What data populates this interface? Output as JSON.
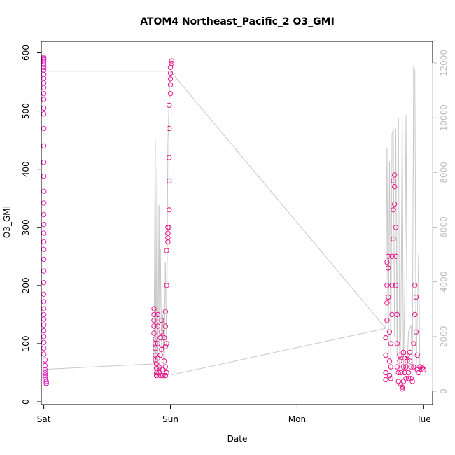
{
  "chart_data": {
    "type": "scatter",
    "title": "ATOM4 Northeast_Pacific_2 O3_GMI",
    "xlabel": "Date",
    "ylabel": "O3_GMI",
    "x_ticks": [
      {
        "label": "Sat",
        "day": 0
      },
      {
        "label": "Sun",
        "day": 1
      },
      {
        "label": "Mon",
        "day": 2
      },
      {
        "label": "Tue",
        "day": 3
      }
    ],
    "xlim": [
      -0.02,
      3.07
    ],
    "ylim": [
      0,
      600
    ],
    "y_ticks": [
      0,
      100,
      200,
      300,
      400,
      500,
      600
    ],
    "y2lim": [
      0,
      12000
    ],
    "y2_ticks": [
      0,
      2000,
      4000,
      6000,
      8000,
      10000,
      12000
    ],
    "grid": false,
    "legend": "none",
    "colors": {
      "marker": "#e6158a",
      "marker_early": "#e020c0",
      "altitude_line": "#c8c8c8",
      "axis": "#000000",
      "right_axis": "#bdbdbd"
    },
    "series": [
      {
        "points": [
          [
            0.0,
            592
          ],
          [
            0.0,
            590
          ],
          [
            0.0,
            588
          ],
          [
            0.0,
            585
          ],
          [
            0.0,
            580
          ],
          [
            0.0,
            575
          ],
          [
            0.0,
            570
          ],
          [
            0.0,
            563
          ],
          [
            0.0,
            556
          ],
          [
            0.0,
            548
          ],
          [
            0.0,
            540
          ],
          [
            0.0,
            530
          ],
          [
            0.0,
            520
          ],
          [
            0.0,
            505
          ],
          [
            0.0,
            495
          ],
          [
            0.0,
            470
          ],
          [
            0.0,
            440
          ],
          [
            0.0,
            412
          ],
          [
            0.0,
            388
          ],
          [
            0.0,
            362
          ],
          [
            0.0,
            342
          ],
          [
            0.0,
            322
          ],
          [
            0.0,
            305
          ],
          [
            0.0,
            290
          ],
          [
            0.0,
            275
          ],
          [
            0.0,
            262
          ],
          [
            0.0,
            245
          ],
          [
            0.0,
            225
          ],
          [
            0.0,
            205
          ],
          [
            0.0,
            185
          ],
          [
            0.0,
            172
          ],
          [
            0.0,
            160
          ],
          [
            0.0,
            150
          ],
          [
            0.0,
            142
          ],
          [
            0.0,
            132
          ],
          [
            0.0,
            122
          ],
          [
            0.0,
            112
          ],
          [
            0.0,
            102
          ],
          [
            0.0,
            92
          ],
          [
            0.0,
            82
          ],
          [
            0.01,
            72
          ],
          [
            0.01,
            62
          ],
          [
            0.01,
            55
          ],
          [
            0.01,
            50
          ],
          [
            0.01,
            46
          ],
          [
            0.01,
            42
          ],
          [
            0.01,
            38
          ],
          [
            0.02,
            35
          ],
          [
            0.02,
            32
          ],
          [
            0.02,
            31
          ],
          [
            0.87,
            160
          ],
          [
            0.87,
            150
          ],
          [
            0.87,
            140
          ],
          [
            0.87,
            130
          ],
          [
            0.87,
            118
          ],
          [
            0.88,
            108
          ],
          [
            0.88,
            100
          ],
          [
            0.88,
            92
          ],
          [
            0.88,
            80
          ],
          [
            0.88,
            72
          ],
          [
            0.89,
            65
          ],
          [
            0.89,
            58
          ],
          [
            0.89,
            50
          ],
          [
            0.89,
            45
          ],
          [
            0.9,
            150
          ],
          [
            0.9,
            130
          ],
          [
            0.9,
            100
          ],
          [
            0.9,
            75
          ],
          [
            0.91,
            60
          ],
          [
            0.91,
            50
          ],
          [
            0.92,
            45
          ],
          [
            0.92,
            80
          ],
          [
            0.92,
            110
          ],
          [
            0.93,
            140
          ],
          [
            0.93,
            120
          ],
          [
            0.93,
            90
          ],
          [
            0.94,
            55
          ],
          [
            0.94,
            45
          ],
          [
            0.95,
            70
          ],
          [
            0.95,
            110
          ],
          [
            0.96,
            155
          ],
          [
            0.96,
            130
          ],
          [
            0.96,
            95
          ],
          [
            0.96,
            60
          ],
          [
            0.96,
            45
          ],
          [
            0.97,
            50
          ],
          [
            0.97,
            100
          ],
          [
            0.97,
            200
          ],
          [
            0.97,
            260
          ],
          [
            0.98,
            282
          ],
          [
            0.98,
            290
          ],
          [
            0.98,
            300
          ],
          [
            0.98,
            290
          ],
          [
            0.98,
            275
          ],
          [
            0.99,
            300
          ],
          [
            0.99,
            330
          ],
          [
            0.99,
            380
          ],
          [
            0.99,
            420
          ],
          [
            0.99,
            470
          ],
          [
            0.99,
            510
          ],
          [
            1.0,
            530
          ],
          [
            1.0,
            545
          ],
          [
            1.0,
            555
          ],
          [
            1.0,
            565
          ],
          [
            1.0,
            575
          ],
          [
            1.01,
            582
          ],
          [
            1.01,
            586
          ],
          [
            2.7,
            38
          ],
          [
            2.7,
            50
          ],
          [
            2.7,
            80
          ],
          [
            2.7,
            110
          ],
          [
            2.71,
            140
          ],
          [
            2.71,
            170
          ],
          [
            2.71,
            200
          ],
          [
            2.71,
            240
          ],
          [
            2.72,
            250
          ],
          [
            2.72,
            230
          ],
          [
            2.72,
            180
          ],
          [
            2.73,
            120
          ],
          [
            2.73,
            70
          ],
          [
            2.73,
            45
          ],
          [
            2.74,
            40
          ],
          [
            2.74,
            60
          ],
          [
            2.74,
            100
          ],
          [
            2.75,
            150
          ],
          [
            2.75,
            200
          ],
          [
            2.75,
            250
          ],
          [
            2.76,
            280
          ],
          [
            2.76,
            330
          ],
          [
            2.76,
            380
          ],
          [
            2.77,
            390
          ],
          [
            2.77,
            370
          ],
          [
            2.77,
            340
          ],
          [
            2.78,
            300
          ],
          [
            2.78,
            250
          ],
          [
            2.78,
            200
          ],
          [
            2.79,
            150
          ],
          [
            2.79,
            100
          ],
          [
            2.79,
            60
          ],
          [
            2.8,
            35
          ],
          [
            2.8,
            50
          ],
          [
            2.81,
            80
          ],
          [
            2.81,
            70
          ],
          [
            2.82,
            50
          ],
          [
            2.82,
            30
          ],
          [
            2.83,
            22
          ],
          [
            2.83,
            25
          ],
          [
            2.84,
            35
          ],
          [
            2.84,
            60
          ],
          [
            2.84,
            85
          ],
          [
            2.85,
            75
          ],
          [
            2.85,
            50
          ],
          [
            2.86,
            40
          ],
          [
            2.86,
            60
          ],
          [
            2.87,
            80
          ],
          [
            2.87,
            70
          ],
          [
            2.88,
            50
          ],
          [
            2.88,
            40
          ],
          [
            2.89,
            70
          ],
          [
            2.89,
            85
          ],
          [
            2.9,
            60
          ],
          [
            2.9,
            40
          ],
          [
            2.91,
            35
          ],
          [
            2.92,
            60
          ],
          [
            2.92,
            100
          ],
          [
            2.93,
            150
          ],
          [
            2.93,
            200
          ],
          [
            2.94,
            180
          ],
          [
            2.94,
            120
          ],
          [
            2.95,
            80
          ],
          [
            2.95,
            55
          ],
          [
            2.96,
            50
          ],
          [
            2.97,
            60
          ],
          [
            2.98,
            55
          ],
          [
            2.99,
            58
          ],
          [
            3.0,
            55
          ]
        ]
      }
    ],
    "altitude": [
      [
        0.0,
        11700
      ],
      [
        1.01,
        11700
      ],
      [
        0.0,
        800
      ],
      [
        0.87,
        1000
      ],
      [
        0.88,
        9200
      ],
      [
        0.885,
        500
      ],
      [
        0.895,
        8700
      ],
      [
        0.9,
        600
      ],
      [
        0.91,
        6800
      ],
      [
        0.915,
        500
      ],
      [
        0.92,
        5200
      ],
      [
        0.93,
        1400
      ],
      [
        0.94,
        2800
      ],
      [
        0.95,
        500
      ],
      [
        0.96,
        4700
      ],
      [
        0.97,
        1600
      ],
      [
        0.98,
        9100
      ],
      [
        0.99,
        10700
      ],
      [
        1.0,
        11700
      ],
      [
        2.7,
        2300
      ],
      [
        2.71,
        8900
      ],
      [
        2.72,
        1200
      ],
      [
        2.73,
        8400
      ],
      [
        2.74,
        800
      ],
      [
        2.75,
        9400
      ],
      [
        2.76,
        9600
      ],
      [
        2.77,
        2000
      ],
      [
        2.78,
        9600
      ],
      [
        2.79,
        1300
      ],
      [
        2.8,
        10000
      ],
      [
        2.81,
        800
      ],
      [
        2.82,
        2300
      ],
      [
        2.83,
        10100
      ],
      [
        2.84,
        600
      ],
      [
        2.85,
        3600
      ],
      [
        2.86,
        10100
      ],
      [
        2.87,
        800
      ],
      [
        2.88,
        2200
      ],
      [
        2.9,
        2400
      ],
      [
        2.91,
        900
      ],
      [
        2.92,
        11900
      ],
      [
        2.93,
        11700
      ],
      [
        2.94,
        600
      ],
      [
        2.96,
        5000
      ],
      [
        2.97,
        800
      ],
      [
        3.0,
        1000
      ]
    ]
  }
}
